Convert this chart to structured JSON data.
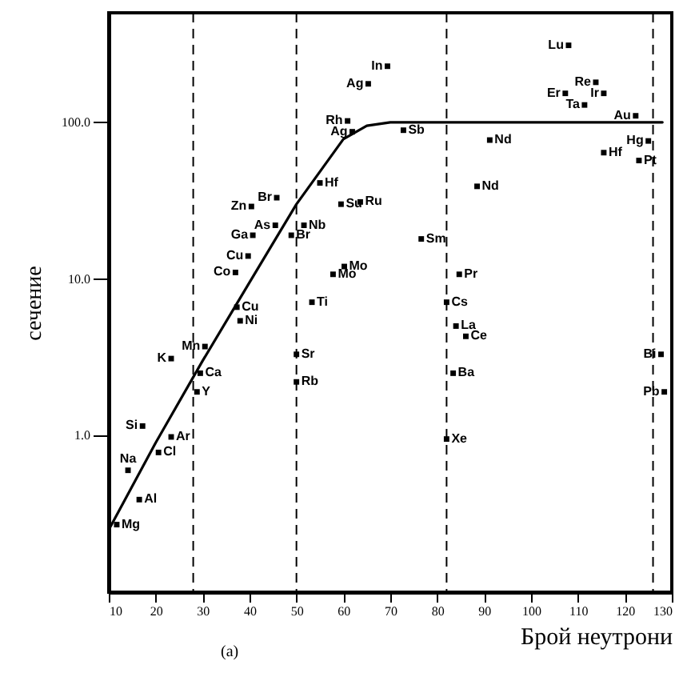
{
  "chart_data": {
    "type": "scatter",
    "xlabel": "Брой неутрони",
    "ylabel": "сечение",
    "xlim": [
      10,
      130
    ],
    "xticks": [
      10,
      20,
      30,
      40,
      50,
      60,
      70,
      80,
      90,
      100,
      110,
      120,
      130
    ],
    "ylim": [
      0.1,
      500
    ],
    "yticks": [
      {
        "value": 1,
        "label": "1.0"
      },
      {
        "value": 10,
        "label": "10.0"
      },
      {
        "value": 100,
        "label": "100.0"
      }
    ],
    "log": "y",
    "grid": false,
    "series": [
      {
        "type": "line",
        "color": "#000000",
        "line_style": "solid",
        "x": [
          10,
          20,
          30,
          40,
          50,
          60,
          65,
          70,
          128
        ],
        "values": [
          0.25,
          0.9,
          3,
          9.5,
          30,
          78,
          95,
          100,
          100
        ]
      },
      {
        "type": "scatter",
        "color": "#000000",
        "marker": "square",
        "x": [
          11.7,
          16.5,
          14.1,
          17.2,
          20.6,
          23.3,
          23.3,
          29.5,
          28.8,
          30.5,
          38,
          37.3,
          37,
          39.7,
          40.7,
          40.4,
          45.5,
          45.8,
          48.9,
          55,
          51.6,
          59.5,
          63.6,
          60.2,
          57.8,
          53.3,
          50,
          50,
          60.9,
          65.3,
          69.4,
          61.9,
          72.8,
          91.2,
          88.5,
          76.6,
          84.7,
          82,
          84,
          86.1,
          83.4,
          82,
          108,
          107.3,
          113.8,
          115.5,
          111.4,
          122.3,
          115.5,
          125,
          123,
          127.7,
          128.4
        ],
        "values": [
          0.27,
          0.39,
          0.6,
          1.15,
          0.78,
          0.98,
          3.1,
          2.5,
          1.9,
          3.7,
          5.4,
          6.6,
          11,
          14,
          19,
          29,
          22,
          33,
          19,
          41,
          22,
          30,
          31,
          12,
          10.7,
          7.1,
          3.3,
          2.2,
          102,
          176,
          228,
          87,
          89,
          77,
          39,
          18,
          10.7,
          7.1,
          5,
          4.3,
          2.5,
          0.95,
          310,
          153,
          180,
          153,
          129,
          110,
          64,
          76,
          57,
          3.3,
          1.9
        ]
      }
    ],
    "ref_lines": [
      {
        "axis": "x",
        "value": 28,
        "line_style": "dashed",
        "color": "#000000"
      },
      {
        "axis": "x",
        "value": 50,
        "line_style": "dashed",
        "color": "#000000"
      },
      {
        "axis": "x",
        "value": 82,
        "line_style": "dashed",
        "color": "#000000"
      },
      {
        "axis": "x",
        "value": 126,
        "line_style": "dashed",
        "color": "#000000"
      }
    ],
    "annotations": [
      {
        "text": "Mg",
        "x": 11.7,
        "y": 0.27
      },
      {
        "text": "Al",
        "x": 16.5,
        "y": 0.39
      },
      {
        "text": "Na",
        "x": 14.1,
        "y": 0.6
      },
      {
        "text": "Si",
        "x": 17.2,
        "y": 1.15
      },
      {
        "text": "Cl",
        "x": 20.6,
        "y": 0.78
      },
      {
        "text": "Ar",
        "x": 23.3,
        "y": 0.98
      },
      {
        "text": "K",
        "x": 23.3,
        "y": 3.1
      },
      {
        "text": "Ca",
        "x": 29.5,
        "y": 2.5
      },
      {
        "text": "Y",
        "x": 28.8,
        "y": 1.9
      },
      {
        "text": "Mn",
        "x": 30.5,
        "y": 3.7
      },
      {
        "text": "Ni",
        "x": 38,
        "y": 5.4
      },
      {
        "text": "Cu",
        "x": 37.3,
        "y": 6.6
      },
      {
        "text": "Co",
        "x": 37,
        "y": 11
      },
      {
        "text": "Cu",
        "x": 39.7,
        "y": 14
      },
      {
        "text": "Ga",
        "x": 40.7,
        "y": 19
      },
      {
        "text": "Zn",
        "x": 40.4,
        "y": 29
      },
      {
        "text": "As",
        "x": 45.5,
        "y": 22
      },
      {
        "text": "Br",
        "x": 45.8,
        "y": 33
      },
      {
        "text": "Br",
        "x": 48.9,
        "y": 19
      },
      {
        "text": "Hf",
        "x": 55,
        "y": 41
      },
      {
        "text": "Nb",
        "x": 51.6,
        "y": 22
      },
      {
        "text": "Su",
        "x": 59.5,
        "y": 30
      },
      {
        "text": "Ru",
        "x": 63.6,
        "y": 31
      },
      {
        "text": "Mo",
        "x": 60.2,
        "y": 12
      },
      {
        "text": "Mo",
        "x": 57.8,
        "y": 10.7
      },
      {
        "text": "Ti",
        "x": 53.3,
        "y": 7.1
      },
      {
        "text": "Sr",
        "x": 50,
        "y": 3.3
      },
      {
        "text": "Rb",
        "x": 50,
        "y": 2.2
      },
      {
        "text": "Rh",
        "x": 60.9,
        "y": 102
      },
      {
        "text": "Ag",
        "x": 65.3,
        "y": 176
      },
      {
        "text": "In",
        "x": 69.4,
        "y": 228
      },
      {
        "text": "Ag",
        "x": 61.9,
        "y": 87
      },
      {
        "text": "Sb",
        "x": 72.8,
        "y": 89
      },
      {
        "text": "Nd",
        "x": 91.2,
        "y": 77
      },
      {
        "text": "Nd",
        "x": 88.5,
        "y": 39
      },
      {
        "text": "Sm",
        "x": 76.6,
        "y": 18
      },
      {
        "text": "Pr",
        "x": 84.7,
        "y": 10.7
      },
      {
        "text": "Cs",
        "x": 82,
        "y": 7.1
      },
      {
        "text": "La",
        "x": 84,
        "y": 5
      },
      {
        "text": "Ce",
        "x": 86.1,
        "y": 4.3
      },
      {
        "text": "Ba",
        "x": 83.4,
        "y": 2.5
      },
      {
        "text": "Xe",
        "x": 82,
        "y": 0.95
      },
      {
        "text": "Lu",
        "x": 108,
        "y": 310
      },
      {
        "text": "Er",
        "x": 107.3,
        "y": 153
      },
      {
        "text": "Re",
        "x": 113.8,
        "y": 180
      },
      {
        "text": "Ir",
        "x": 115.5,
        "y": 153
      },
      {
        "text": "Ta",
        "x": 111.4,
        "y": 129
      },
      {
        "text": "Au",
        "x": 122.3,
        "y": 110
      },
      {
        "text": "Hf",
        "x": 115.5,
        "y": 64
      },
      {
        "text": "Hg",
        "x": 125,
        "y": 76
      },
      {
        "text": "Pt",
        "x": 123,
        "y": 57
      },
      {
        "text": "Bi",
        "x": 127.7,
        "y": 3.3
      },
      {
        "text": "Pb",
        "x": 128.4,
        "y": 1.9
      },
      "(а)"
    ]
  }
}
